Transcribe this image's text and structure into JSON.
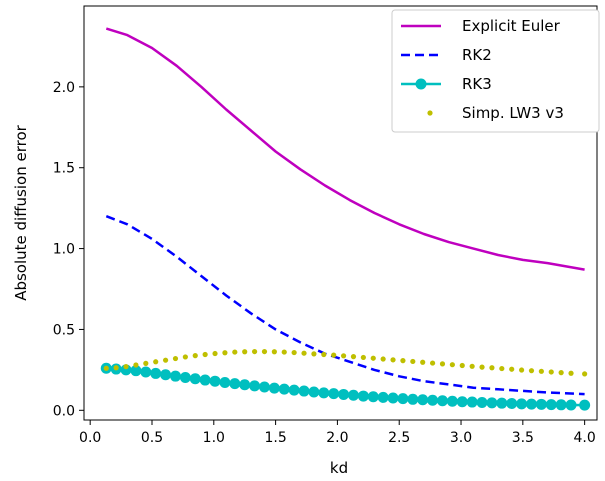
{
  "chart_data": {
    "type": "line",
    "xlabel": "kd",
    "ylabel": "Absolute diffusion error",
    "xlim": [
      -0.05,
      4.1
    ],
    "ylim": [
      -0.06,
      2.5
    ],
    "xticks": [
      0.0,
      0.5,
      1.0,
      1.5,
      2.0,
      2.5,
      3.0,
      3.5,
      4.0
    ],
    "xtick_labels": [
      "0.0",
      "0.5",
      "1.0",
      "1.5",
      "2.0",
      "2.5",
      "3.0",
      "3.5",
      "4.0"
    ],
    "yticks": [
      0.0,
      0.5,
      1.0,
      1.5,
      2.0
    ],
    "ytick_labels": [
      "0.0",
      "0.5",
      "1.0",
      "1.5",
      "2.0"
    ],
    "grid": false,
    "legend_position": "top-right",
    "series": [
      {
        "name": "Explicit Euler",
        "style": "solid",
        "color": "#bf00bf",
        "x": [
          0.13,
          0.3,
          0.5,
          0.7,
          0.9,
          1.1,
          1.3,
          1.5,
          1.7,
          1.9,
          2.1,
          2.3,
          2.5,
          2.7,
          2.9,
          3.1,
          3.3,
          3.5,
          3.7,
          4.0
        ],
        "y": [
          2.36,
          2.32,
          2.24,
          2.13,
          2.0,
          1.86,
          1.73,
          1.6,
          1.49,
          1.39,
          1.3,
          1.22,
          1.15,
          1.09,
          1.04,
          1.0,
          0.96,
          0.93,
          0.91,
          0.87
        ]
      },
      {
        "name": "RK2",
        "style": "dashed",
        "color": "#0000ff",
        "x": [
          0.13,
          0.3,
          0.5,
          0.7,
          0.9,
          1.1,
          1.3,
          1.5,
          1.7,
          1.9,
          2.1,
          2.3,
          2.5,
          2.7,
          2.9,
          3.1,
          3.3,
          3.5,
          3.7,
          4.0
        ],
        "y": [
          1.2,
          1.15,
          1.06,
          0.95,
          0.83,
          0.71,
          0.6,
          0.5,
          0.42,
          0.35,
          0.3,
          0.25,
          0.21,
          0.18,
          0.16,
          0.14,
          0.13,
          0.12,
          0.11,
          0.1
        ]
      },
      {
        "name": "RK3",
        "style": "solid-circle-markers",
        "color": "#00bfbf",
        "x": [
          0.13,
          0.21,
          0.29,
          0.37,
          0.45,
          0.53,
          0.61,
          0.69,
          0.77,
          0.85,
          0.93,
          1.01,
          1.09,
          1.17,
          1.25,
          1.33,
          1.41,
          1.49,
          1.57,
          1.65,
          1.73,
          1.81,
          1.89,
          1.97,
          2.05,
          2.13,
          2.21,
          2.29,
          2.37,
          2.45,
          2.53,
          2.61,
          2.69,
          2.77,
          2.85,
          2.93,
          3.01,
          3.09,
          3.17,
          3.25,
          3.33,
          3.41,
          3.49,
          3.57,
          3.65,
          3.73,
          3.81,
          3.89,
          4.0
        ],
        "y": [
          0.26,
          0.255,
          0.25,
          0.245,
          0.237,
          0.228,
          0.22,
          0.211,
          0.203,
          0.195,
          0.187,
          0.18,
          0.172,
          0.165,
          0.158,
          0.151,
          0.144,
          0.137,
          0.131,
          0.125,
          0.119,
          0.113,
          0.108,
          0.103,
          0.098,
          0.093,
          0.088,
          0.084,
          0.08,
          0.076,
          0.072,
          0.068,
          0.065,
          0.062,
          0.059,
          0.056,
          0.053,
          0.051,
          0.048,
          0.046,
          0.044,
          0.042,
          0.04,
          0.038,
          0.037,
          0.035,
          0.034,
          0.033,
          0.032
        ]
      },
      {
        "name": "Simp. LW3 v3",
        "style": "dotted-markers",
        "color": "#bfbf00",
        "x": [
          0.13,
          0.21,
          0.29,
          0.37,
          0.45,
          0.53,
          0.61,
          0.69,
          0.77,
          0.85,
          0.93,
          1.01,
          1.09,
          1.17,
          1.25,
          1.33,
          1.41,
          1.49,
          1.57,
          1.65,
          1.73,
          1.81,
          1.89,
          1.97,
          2.05,
          2.13,
          2.21,
          2.29,
          2.37,
          2.45,
          2.53,
          2.61,
          2.69,
          2.77,
          2.85,
          2.93,
          3.01,
          3.09,
          3.17,
          3.25,
          3.33,
          3.41,
          3.49,
          3.57,
          3.65,
          3.73,
          3.81,
          3.89,
          4.0
        ],
        "y": [
          0.26,
          0.263,
          0.27,
          0.28,
          0.29,
          0.3,
          0.31,
          0.32,
          0.33,
          0.338,
          0.345,
          0.351,
          0.356,
          0.36,
          0.362,
          0.363,
          0.363,
          0.362,
          0.36,
          0.357,
          0.353,
          0.349,
          0.345,
          0.341,
          0.337,
          0.332,
          0.327,
          0.322,
          0.317,
          0.312,
          0.307,
          0.302,
          0.297,
          0.292,
          0.287,
          0.282,
          0.277,
          0.272,
          0.267,
          0.263,
          0.258,
          0.254,
          0.249,
          0.245,
          0.241,
          0.237,
          0.233,
          0.229,
          0.225
        ]
      }
    ]
  }
}
